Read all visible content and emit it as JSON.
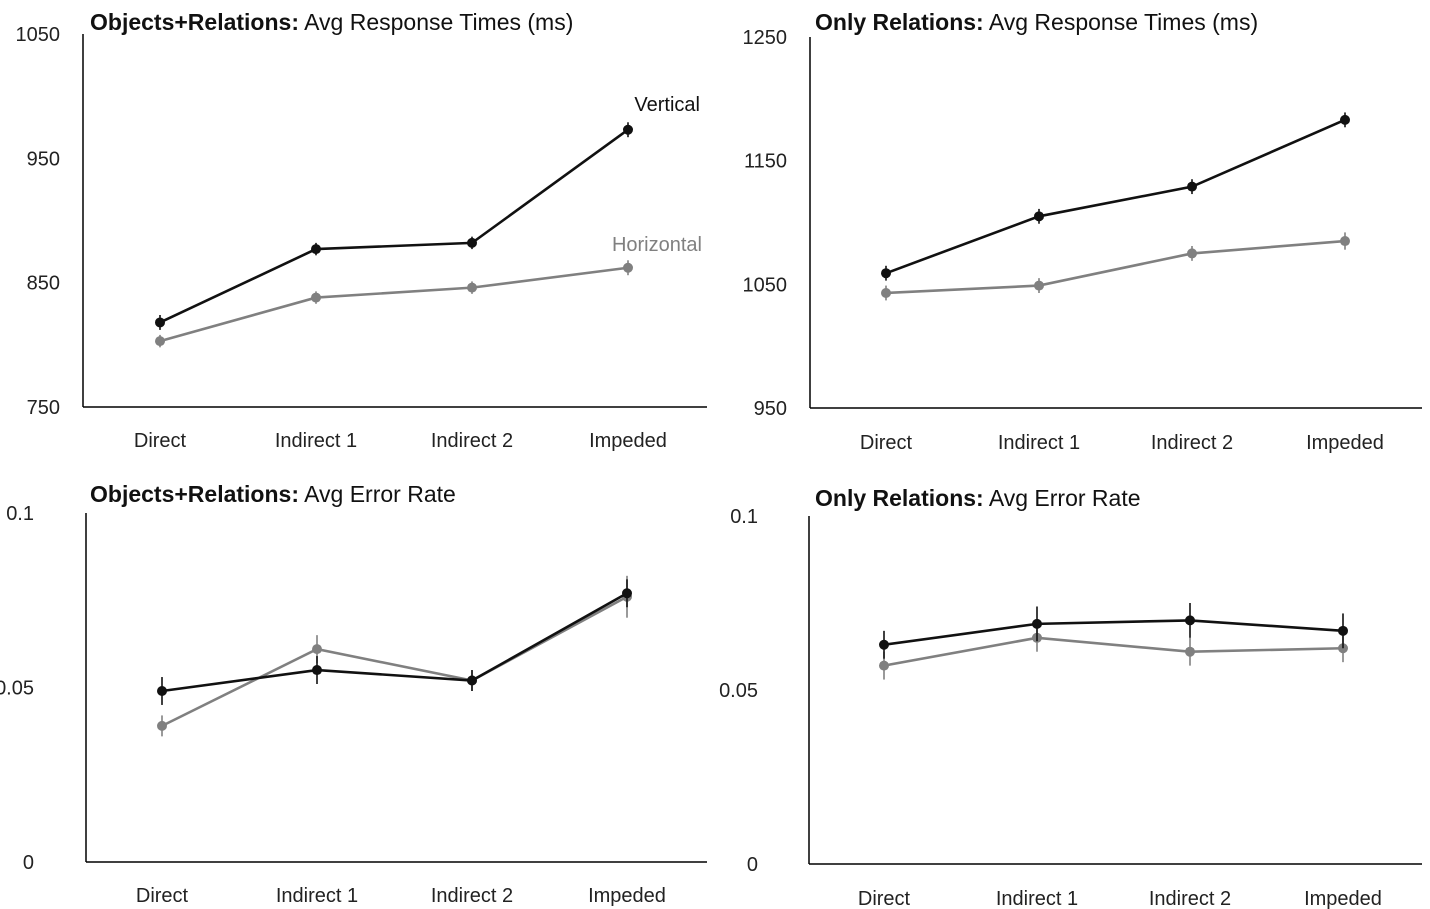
{
  "chart_data": [
    {
      "type": "line",
      "title_bold": "Objects+Relations:",
      "title_rest": " Avg Response Times (ms)",
      "categories": [
        "Direct",
        "Indirect 1",
        "Indirect 2",
        "Impeded"
      ],
      "ylim": [
        750,
        1050
      ],
      "yticks": [
        750,
        850,
        950,
        1050
      ],
      "ytick_labels": [
        "750",
        "850",
        "950",
        "1050"
      ],
      "series": [
        {
          "name": "Vertical",
          "color": "#111111",
          "values": [
            818,
            877,
            882,
            973
          ],
          "err": [
            6,
            5,
            5,
            6
          ]
        },
        {
          "name": "Horizontal",
          "color": "#808080",
          "values": [
            803,
            838,
            846,
            862
          ],
          "err": [
            5,
            5,
            5,
            6
          ]
        }
      ]
    },
    {
      "type": "line",
      "title_bold": "Only Relations:",
      "title_rest": " Avg Response Times (ms)",
      "categories": [
        "Direct",
        "Indirect 1",
        "Indirect 2",
        "Impeded"
      ],
      "ylim": [
        950,
        1250
      ],
      "yticks": [
        950,
        1050,
        1150,
        1250
      ],
      "ytick_labels": [
        "950",
        "1050",
        "1150",
        "1250"
      ],
      "series": [
        {
          "color": "#111111",
          "values": [
            1059,
            1105,
            1129,
            1183
          ],
          "err": [
            6,
            6,
            6,
            6
          ]
        },
        {
          "color": "#808080",
          "values": [
            1043,
            1049,
            1075,
            1085
          ],
          "err": [
            6,
            6,
            6,
            7
          ]
        }
      ]
    },
    {
      "type": "line",
      "title_bold": "Objects+Relations:",
      "title_rest": " Avg Error Rate",
      "categories": [
        "Direct",
        "Indirect 1",
        "Indirect 2",
        "Impeded"
      ],
      "ylim": [
        0,
        0.1
      ],
      "yticks": [
        0,
        0.05,
        0.1
      ],
      "ytick_labels": [
        "0",
        "0.05",
        "0.1"
      ],
      "series": [
        {
          "color": "#111111",
          "values": [
            0.049,
            0.055,
            0.052,
            0.077
          ],
          "err": [
            0.004,
            0.004,
            0.003,
            0.004
          ]
        },
        {
          "color": "#808080",
          "values": [
            0.039,
            0.061,
            0.052,
            0.076
          ],
          "err": [
            0.003,
            0.004,
            0.003,
            0.006
          ]
        }
      ]
    },
    {
      "type": "line",
      "title_bold": "Only Relations:",
      "title_rest": " Avg Error Rate",
      "categories": [
        "Direct",
        "Indirect 1",
        "Indirect 2",
        "Impeded"
      ],
      "ylim": [
        0,
        0.1
      ],
      "yticks": [
        0,
        0.05,
        0.1
      ],
      "ytick_labels": [
        "0",
        "0.05",
        "0.1"
      ],
      "series": [
        {
          "color": "#111111",
          "values": [
            0.063,
            0.069,
            0.07,
            0.067
          ],
          "err": [
            0.004,
            0.005,
            0.005,
            0.005
          ]
        },
        {
          "color": "#808080",
          "values": [
            0.057,
            0.065,
            0.061,
            0.062
          ],
          "err": [
            0.004,
            0.004,
            0.004,
            0.004
          ]
        }
      ]
    }
  ]
}
